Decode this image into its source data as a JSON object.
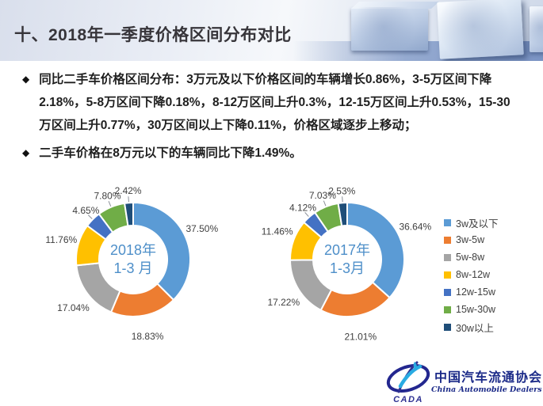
{
  "slide": {
    "title": "十、2018年一季度价格区间分布对比"
  },
  "bullets": [
    "同比二手车价格区间分布：3万元及以下价格区间的车辆增长0.86%，3-5万区间下降2.18%，5-8万区间下降0.18%，8-12万区间上升0.3%，12-15万区间上升0.53%，15-30万区间上升0.77%，30万区间以上下降0.11%，价格区域逐步上移动；",
    "二手车价格在8万元以下的车辆同比下降1.49%。"
  ],
  "bullet_marker": "◆",
  "chart_data": [
    {
      "type": "pie",
      "subtype": "donut",
      "title": "2018年1-3月",
      "center_line1": "2018年",
      "center_line2": "1-3 月",
      "categories": [
        "3w及以下",
        "3w-5w",
        "5w-8w",
        "8w-12w",
        "12w-15w",
        "15w-30w",
        "30w以上"
      ],
      "values": [
        37.5,
        18.83,
        17.04,
        11.76,
        4.65,
        7.8,
        2.42
      ],
      "labels": [
        "37.50%",
        "18.83%",
        "17.04%",
        "11.76%",
        "4.65%",
        "7.80%",
        "2.42%"
      ],
      "colors": [
        "#5B9BD5",
        "#ED7D31",
        "#A5A5A5",
        "#FFC000",
        "#4472C4",
        "#70AD47",
        "#1F4E79"
      ],
      "legend_position": "right"
    },
    {
      "type": "pie",
      "subtype": "donut",
      "title": "2017年1-3月",
      "center_line1": "2017年",
      "center_line2": "1-3月",
      "categories": [
        "3w及以下",
        "3w-5w",
        "5w-8w",
        "8w-12w",
        "12w-15w",
        "15w-30w",
        "30w以上"
      ],
      "values": [
        36.64,
        21.01,
        17.22,
        11.46,
        4.12,
        7.03,
        2.53
      ],
      "labels": [
        "36.64%",
        "21.01%",
        "17.22%",
        "11.46%",
        "4.12%",
        "7.03%",
        "2.53%"
      ],
      "colors": [
        "#5B9BD5",
        "#ED7D31",
        "#A5A5A5",
        "#FFC000",
        "#4472C4",
        "#70AD47",
        "#1F4E79"
      ],
      "legend_position": "right"
    }
  ],
  "legend": {
    "items": [
      {
        "label": "3w及以下",
        "color": "#5B9BD5"
      },
      {
        "label": "3w-5w",
        "color": "#ED7D31"
      },
      {
        "label": "5w-8w",
        "color": "#A5A5A5"
      },
      {
        "label": "8w-12w",
        "color": "#FFC000"
      },
      {
        "label": "12w-15w",
        "color": "#4472C4"
      },
      {
        "label": "15w-30w",
        "color": "#70AD47"
      },
      {
        "label": "30w以上",
        "color": "#1F4E79"
      }
    ]
  },
  "logo": {
    "acronym": "CADA",
    "name_cn": "中国汽车流通协会",
    "name_en": "China Automobile Dealers Association",
    "brand_navy": "#2e3192",
    "brand_lightblue": "#29abe2"
  }
}
